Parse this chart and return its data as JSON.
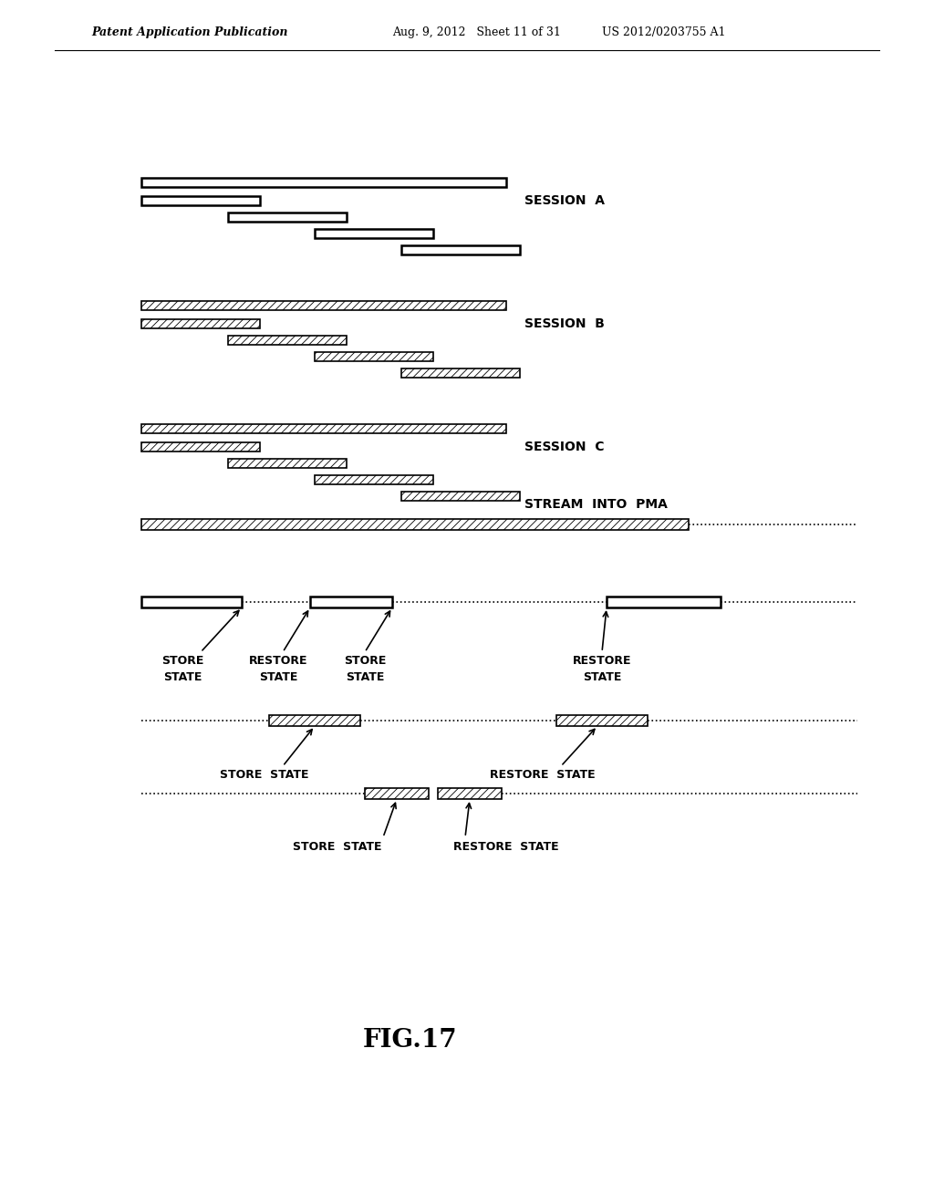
{
  "bg_color": "#ffffff",
  "header_left": "Patent Application Publication",
  "header_mid": "Aug. 9, 2012   Sheet 11 of 31",
  "header_right": "US 2012/0203755 A1",
  "figure_label": "FIG.17",
  "session_a_label": "SESSION  A",
  "session_b_label": "SESSION  B",
  "session_c_label": "SESSION  C",
  "stream_label": "STREAM  INTO  PMA",
  "line_color": "#000000"
}
